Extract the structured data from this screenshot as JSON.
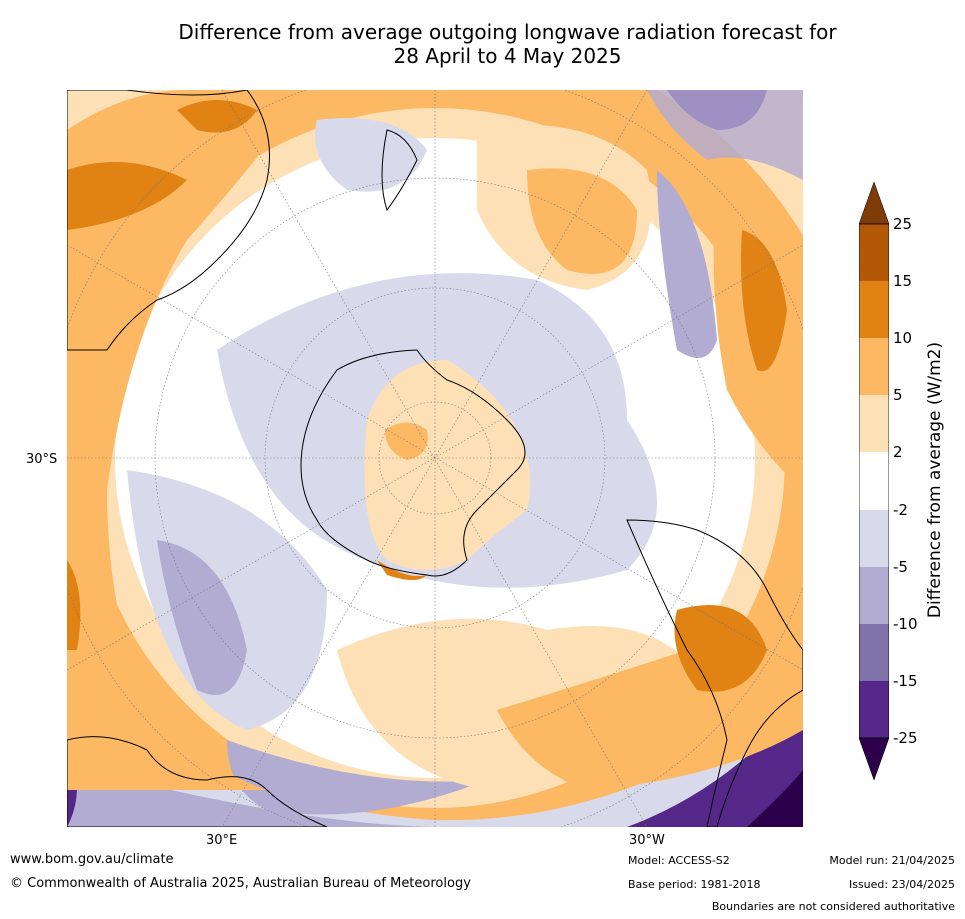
{
  "title_line1": "Difference from average outgoing longwave radiation forecast for",
  "title_line2": "28 April to 4 May 2025",
  "map": {
    "lat_label": "30°S",
    "lon_label_east": "30°E",
    "lon_label_west": "30°W"
  },
  "colorbar": {
    "label": "Difference from average (W/m2)",
    "ticks": [
      "25",
      "15",
      "10",
      "5",
      "2",
      "-2",
      "-5",
      "-10",
      "-15",
      "-25"
    ],
    "colors": {
      "above_25": "#7f3b08",
      "15_to_25": "#b35806",
      "10_to_15": "#e08214",
      "5_to_10": "#fdb863",
      "2_to_5": "#fee0b6",
      "neutral": "#ffffff",
      "-2_to_-5": "#d8daeb",
      "-5_to_-10": "#b2abd2",
      "-10_to_-15": "#8073ac",
      "-15_to_-25": "#542788",
      "below_-25": "#2d004b"
    }
  },
  "footer": {
    "website": "www.bom.gov.au/climate",
    "copyright": "© Commonwealth of Australia 2025, Australian Bureau of Meteorology",
    "model": "Model: ACCESS-S2",
    "base_period": "Base period: 1981-2018",
    "model_run": "Model run: 21/04/2025",
    "issued": "Issued: 23/04/2025",
    "disclaimer": "Boundaries are not considered authoritative"
  }
}
